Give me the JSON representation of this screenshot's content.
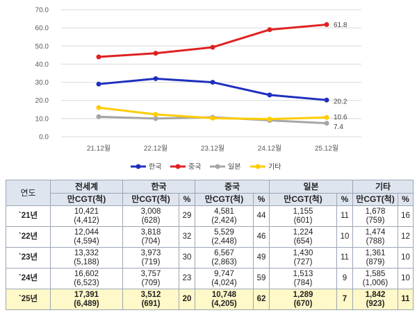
{
  "chart_data": {
    "type": "line",
    "x": [
      "21.12월",
      "22.12월",
      "23.12월",
      "24.12월",
      "25.12월"
    ],
    "ylim": [
      0,
      70
    ],
    "yticks": [
      "0.0",
      "10.0",
      "20.0",
      "30.0",
      "40.0",
      "50.0",
      "60.0",
      "70.0"
    ],
    "series": [
      {
        "name": "한국",
        "color": "#1f2fbf",
        "values": [
          29,
          32,
          30,
          23,
          20.2
        ],
        "end_label": "20.2"
      },
      {
        "name": "중국",
        "color": "#e02020",
        "values": [
          44,
          46,
          49.3,
          59,
          61.8
        ],
        "end_label": "61.8"
      },
      {
        "name": "일본",
        "color": "#a6a6a6",
        "values": [
          11,
          10,
          10.7,
          9,
          7.4
        ],
        "end_label": "7.4"
      },
      {
        "name": "기타",
        "color": "#ffcc00",
        "values": [
          16,
          12.3,
          10.2,
          9.7,
          10.6
        ],
        "end_label": "10.6"
      }
    ]
  },
  "table": {
    "year_header": "연도",
    "groups": [
      "전세계",
      "한국",
      "중국",
      "일본",
      "기타"
    ],
    "sub_unit": "만CGT(척)",
    "sub_pct": "%",
    "rows": [
      {
        "year": "`21년",
        "world": {
          "cgt": "10,421",
          "ships": "(4,412)"
        },
        "korea": {
          "cgt": "3,008",
          "ships": "(628)",
          "pct": "29"
        },
        "china": {
          "cgt": "4,581",
          "ships": "(2,424)",
          "pct": "44"
        },
        "japan": {
          "cgt": "1,155",
          "ships": "(601)",
          "pct": "11"
        },
        "other": {
          "cgt": "1,678",
          "ships": "(759)",
          "pct": "16"
        }
      },
      {
        "year": "`22년",
        "world": {
          "cgt": "12,044",
          "ships": "(4,594)"
        },
        "korea": {
          "cgt": "3,818",
          "ships": "(704)",
          "pct": "32"
        },
        "china": {
          "cgt": "5,529",
          "ships": "(2,448)",
          "pct": "46"
        },
        "japan": {
          "cgt": "1,224",
          "ships": "(654)",
          "pct": "10"
        },
        "other": {
          "cgt": "1,474",
          "ships": "(788)",
          "pct": "12"
        }
      },
      {
        "year": "`23년",
        "world": {
          "cgt": "13,332",
          "ships": "(5,188)"
        },
        "korea": {
          "cgt": "3,973",
          "ships": "(719)",
          "pct": "30"
        },
        "china": {
          "cgt": "6,567",
          "ships": "(2,863)",
          "pct": "49"
        },
        "japan": {
          "cgt": "1,430",
          "ships": "(727)",
          "pct": "11"
        },
        "other": {
          "cgt": "1,361",
          "ships": "(879)",
          "pct": "10"
        }
      },
      {
        "year": "`24년",
        "world": {
          "cgt": "16,602",
          "ships": "(6,523)"
        },
        "korea": {
          "cgt": "3,757",
          "ships": "(709)",
          "pct": "23"
        },
        "china": {
          "cgt": "9,747",
          "ships": "(4,024)",
          "pct": "59"
        },
        "japan": {
          "cgt": "1,513",
          "ships": "(784)",
          "pct": "9"
        },
        "other": {
          "cgt": "1,585",
          "ships": "(1,006)",
          "pct": "10"
        }
      },
      {
        "year": "`25년",
        "world": {
          "cgt": "17,391",
          "ships": "(6,489)"
        },
        "korea": {
          "cgt": "3,512",
          "ships": "(691)",
          "pct": "20"
        },
        "china": {
          "cgt": "10,748",
          "ships": "(4,205)",
          "pct": "62"
        },
        "japan": {
          "cgt": "1,289",
          "ships": "(670)",
          "pct": "7"
        },
        "other": {
          "cgt": "1,842",
          "ships": "(923)",
          "pct": "11"
        }
      }
    ]
  }
}
